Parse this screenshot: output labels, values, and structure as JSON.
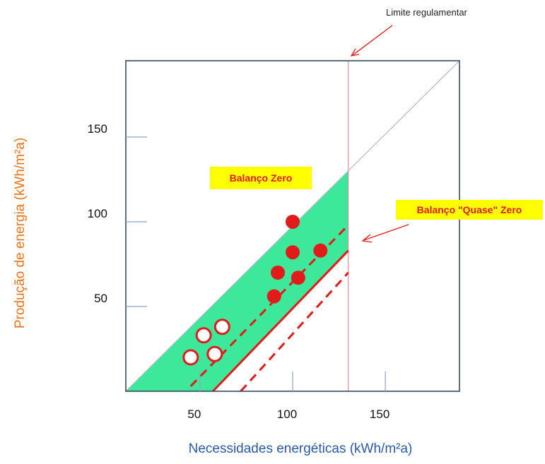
{
  "chart_data": {
    "type": "scatter",
    "xlabel": "Necessidades energéticas (kWh/m²a)",
    "ylabel": "Produção de energia (kWh/m²a)",
    "xlim": [
      10,
      190
    ],
    "ylim": [
      0,
      195
    ],
    "x_ticks": [
      "50",
      "100",
      "150"
    ],
    "y_ticks": [
      "50",
      "100",
      "150"
    ],
    "x_tick_values": [
      50,
      100,
      150
    ],
    "y_tick_values": [
      50,
      100,
      150
    ],
    "grid": false,
    "regulatory_limit_x": 130,
    "zones": [
      {
        "label": "Balanço Zero",
        "color": "#3ee89a"
      }
    ],
    "annotations": [
      {
        "text": "Limite regulamentar"
      },
      {
        "text": "Balanço \"Quase\" Zero",
        "color": "#ffff00"
      }
    ],
    "series": [
      {
        "marker": "open",
        "color": "#e11a1a",
        "x": [
          45,
          52,
          58,
          62
        ],
        "y": [
          20,
          33,
          22,
          38
        ]
      },
      {
        "marker": "filled",
        "color": "#e11a1a",
        "x": [
          90,
          92,
          100,
          100,
          103,
          115
        ],
        "y": [
          56,
          70,
          100,
          82,
          67,
          83
        ]
      }
    ],
    "lines": [
      {
        "style": "solid",
        "color": "#aab8cc",
        "points": [
          [
            10,
            0
          ],
          [
            190,
            195
          ]
        ]
      },
      {
        "style": "dashed",
        "color": "#e11a1a",
        "points": [
          [
            45,
            3
          ],
          [
            130,
            98
          ]
        ]
      },
      {
        "style": "solid",
        "color": "#e11a1a",
        "points": [
          [
            57,
            0
          ],
          [
            130,
            83
          ]
        ]
      },
      {
        "style": "dashed",
        "color": "#e11a1a",
        "points": [
          [
            72,
            0
          ],
          [
            130,
            70
          ]
        ]
      }
    ]
  }
}
